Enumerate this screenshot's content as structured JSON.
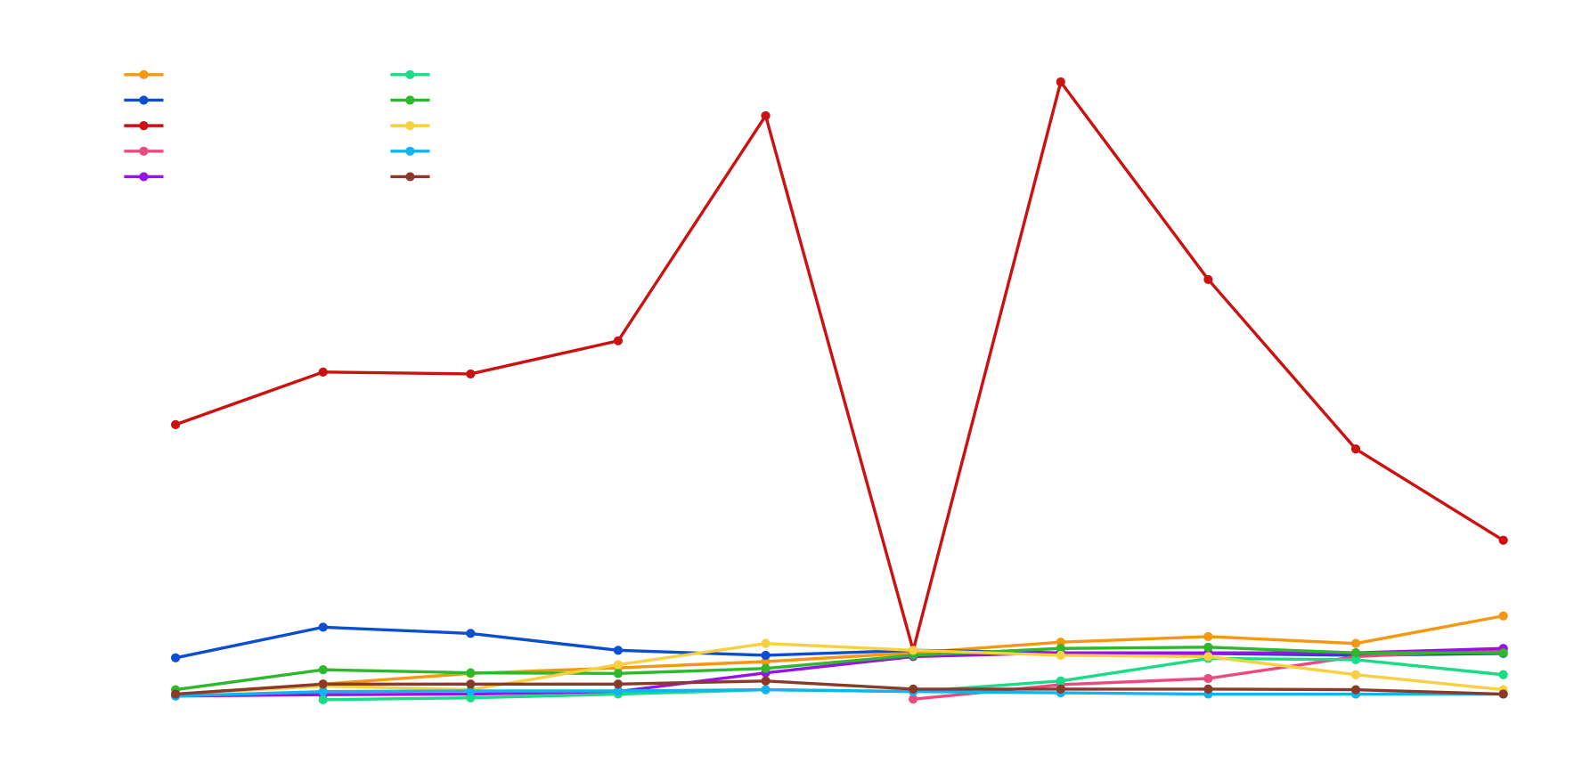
{
  "chart_data": {
    "type": "line",
    "categories": [
      null,
      null,
      null,
      null,
      null,
      null,
      null,
      null,
      null,
      null
    ],
    "ylim": [
      0,
      100
    ],
    "grid": false,
    "legend": "upper left",
    "series": [
      {
        "color": "#f5980f",
        "values": [
          1.9,
          3.5,
          5.2,
          6.1,
          7.1,
          8.5,
          10.2,
          11.1,
          10.0,
          14.4
        ]
      },
      {
        "color": "#0b4fd0",
        "values": [
          7.7,
          12.6,
          11.6,
          8.9,
          8.1,
          8.9,
          8.5,
          8.4,
          8.1,
          8.4
        ]
      },
      {
        "color": "#cc1111",
        "values": [
          45.0,
          53.4,
          53.1,
          58.4,
          94.4,
          8.9,
          99.8,
          68.2,
          41.1,
          26.5
        ]
      },
      {
        "color": "#ec4a7f",
        "values": [
          null,
          null,
          null,
          null,
          null,
          1.1,
          3.4,
          4.4,
          7.9,
          9.0
        ]
      },
      {
        "color": "#9a10e8",
        "values": [
          1.6,
          1.8,
          1.9,
          2.3,
          5.3,
          7.9,
          8.5,
          8.5,
          8.5,
          9.2
        ]
      },
      {
        "color": "#1bdc86",
        "values": [
          null,
          1.0,
          1.3,
          1.9,
          2.6,
          2.3,
          4.0,
          7.6,
          7.4,
          5.0
        ]
      },
      {
        "color": "#2db82d",
        "values": [
          2.6,
          5.8,
          5.3,
          5.2,
          6.0,
          8.1,
          9.2,
          9.4,
          8.5,
          8.5
        ]
      },
      {
        "color": "#f8d040",
        "values": [
          1.9,
          3.2,
          2.6,
          6.6,
          10.0,
          8.9,
          8.1,
          7.9,
          5.0,
          2.6
        ]
      },
      {
        "color": "#10b4ee",
        "values": [
          1.6,
          2.3,
          2.4,
          2.4,
          2.6,
          2.3,
          2.1,
          1.9,
          1.9,
          1.9
        ]
      },
      {
        "color": "#8b3a2a",
        "values": [
          1.9,
          3.5,
          3.5,
          3.5,
          4.0,
          2.7,
          2.7,
          2.7,
          2.6,
          1.9
        ]
      }
    ]
  }
}
